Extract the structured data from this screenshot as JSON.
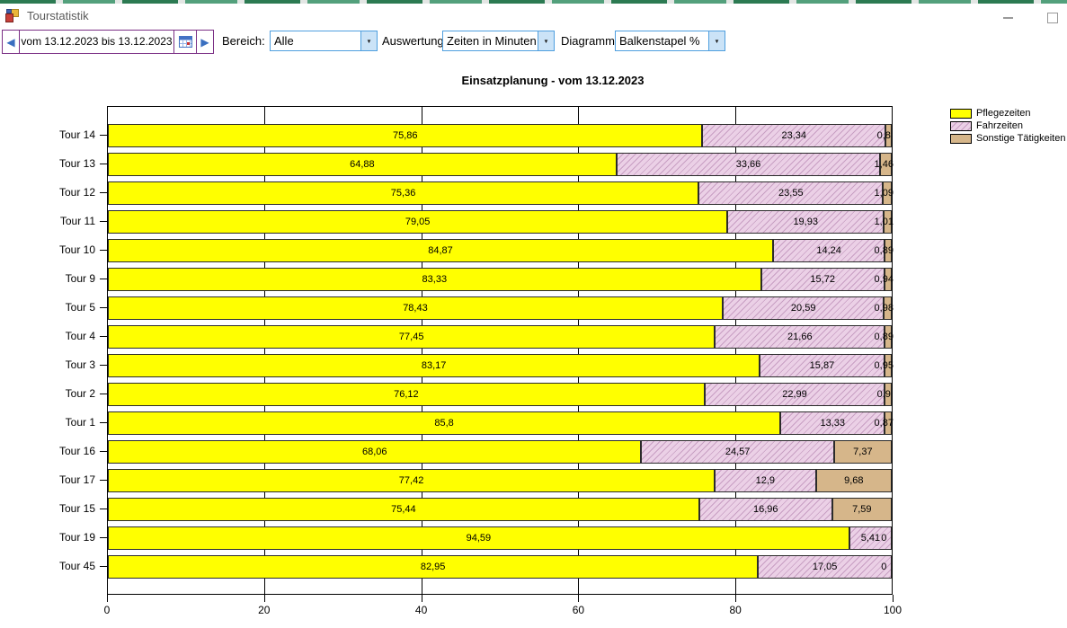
{
  "window": {
    "title": "Tourstatistik"
  },
  "icons": {
    "prev_date": "◀",
    "next_date": "▶",
    "dropdown": "▼"
  },
  "toolbar": {
    "date_range": "vom 13.12.2023 bis 13.12.2023",
    "bereich_label": "Bereich:",
    "bereich_value": "Alle",
    "auswertung_label": "Auswertung:",
    "auswertung_value": "Zeiten in Minuten",
    "diagramm_label": "Diagramm:",
    "diagramm_value": "Balkenstapel %"
  },
  "chart_data": {
    "type": "bar",
    "orientation": "horizontal",
    "stacked": true,
    "stacked_unit": "percent",
    "title": "Einsatzplanung - vom 13.12.2023",
    "categories": [
      "Tour 14",
      "Tour 13",
      "Tour 12",
      "Tour 11",
      "Tour 10",
      "Tour 9",
      "Tour 5",
      "Tour 4",
      "Tour 3",
      "Tour 2",
      "Tour 1",
      "Tour 16",
      "Tour 17",
      "Tour 15",
      "Tour 19",
      "Tour 45"
    ],
    "series": [
      {
        "name": "Pflegezeiten",
        "color": "#FFFF00",
        "hatch": false,
        "values": [
          75.86,
          64.88,
          75.36,
          79.05,
          84.87,
          83.33,
          78.43,
          77.45,
          83.17,
          76.12,
          85.8,
          68.06,
          77.42,
          75.44,
          94.59,
          82.95
        ],
        "labels": [
          "75,86",
          "64,88",
          "75,36",
          "79,05",
          "84,87",
          "83,33",
          "78,43",
          "77,45",
          "83,17",
          "76,12",
          "85,8",
          "68,06",
          "77,42",
          "75,44",
          "94,59",
          "82,95"
        ]
      },
      {
        "name": "Fahrzeiten",
        "color": "#EBD0E6",
        "hatch": true,
        "values": [
          23.34,
          33.66,
          23.55,
          19.93,
          14.24,
          15.72,
          20.59,
          21.66,
          15.87,
          22.99,
          13.33,
          24.57,
          12.9,
          16.96,
          5.41,
          17.05
        ],
        "labels": [
          "23,34",
          "33,66",
          "23,55",
          "19,93",
          "14,24",
          "15,72",
          "20,59",
          "21,66",
          "15,87",
          "22,99",
          "13,33",
          "24,57",
          "12,9",
          "16,96",
          "5,41",
          "17,05"
        ]
      },
      {
        "name": "Sonstige Tätigkeiten",
        "color": "#D6B68A",
        "hatch": false,
        "values": [
          0.8,
          1.46,
          1.09,
          1.01,
          0.89,
          0.94,
          0.98,
          0.89,
          0.95,
          0.9,
          0.87,
          7.37,
          9.68,
          7.59,
          0,
          0
        ],
        "labels": [
          "0,8",
          "1,46",
          "1,09",
          "1,01",
          "0,89",
          "0,94",
          "0,98",
          "0,89",
          "0,95",
          "0,9",
          "0,87",
          "7,37",
          "9,68",
          "7,59",
          "0",
          "0"
        ]
      }
    ],
    "xlim": [
      0,
      100
    ],
    "x_ticks": [
      0,
      20,
      40,
      60,
      80,
      100
    ],
    "grid": "vertical",
    "legend_position": "right"
  }
}
